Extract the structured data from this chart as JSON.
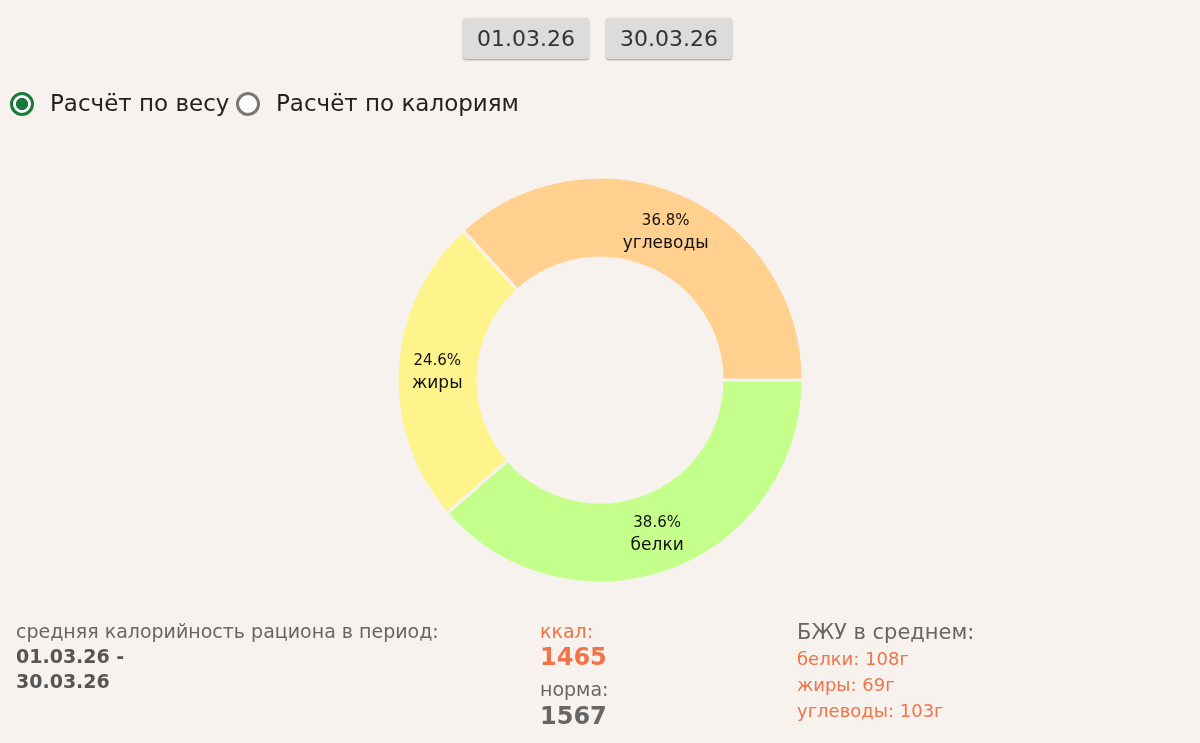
{
  "chart_data": {
    "type": "donut",
    "categories": [
      "белки",
      "жиры",
      "углеводы"
    ],
    "values": [
      38.6,
      24.6,
      36.8
    ],
    "value_labels": [
      "38.6%",
      "24.6%",
      "36.8%"
    ],
    "colors": [
      "#c4ff8c",
      "#fff48c",
      "#ffd08e"
    ],
    "annotations": [
      "01.03.26",
      "30.03.26",
      "Расчёт по весу",
      "Расчёт по калориям",
      "средняя калорийность рациона в период:",
      "01.03.26 -",
      "30.03.26",
      "ккал:",
      "1465",
      "норма:",
      "1567",
      "БЖУ в среднем:",
      "белки: 108г",
      "жиры: 69г",
      "углеводы: 103г"
    ]
  }
}
